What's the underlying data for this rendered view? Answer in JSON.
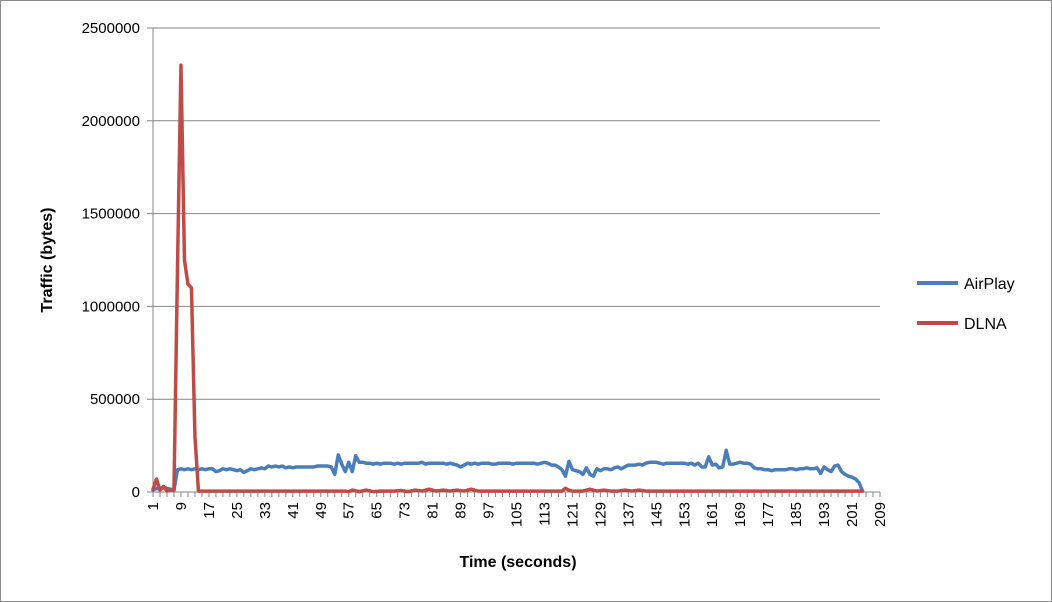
{
  "chart_data": {
    "type": "line",
    "title": "",
    "xlabel": "Time (seconds)",
    "ylabel": "Traffic (bytes)",
    "ylim": [
      0,
      2500000
    ],
    "xlim": [
      1,
      209
    ],
    "y_ticks": [
      "0",
      "500000",
      "1000000",
      "1500000",
      "2000000",
      "2500000"
    ],
    "x_ticks": [
      "1",
      "9",
      "17",
      "25",
      "33",
      "41",
      "49",
      "57",
      "65",
      "73",
      "81",
      "89",
      "97",
      "105",
      "113",
      "121",
      "129",
      "137",
      "145",
      "153",
      "161",
      "169",
      "177",
      "185",
      "193",
      "201",
      "209"
    ],
    "grid": "horizontal",
    "legend_position": "right",
    "series": [
      {
        "name": "AirPlay",
        "color": "#4a7ebb",
        "points": [
          [
            1,
            10000
          ],
          [
            2,
            20000
          ],
          [
            3,
            15000
          ],
          [
            4,
            25000
          ],
          [
            5,
            20000
          ],
          [
            6,
            15000
          ],
          [
            7,
            10000
          ],
          [
            8,
            120000
          ],
          [
            9,
            125000
          ],
          [
            10,
            120000
          ],
          [
            11,
            125000
          ],
          [
            12,
            120000
          ],
          [
            13,
            125000
          ],
          [
            14,
            120000
          ],
          [
            15,
            125000
          ],
          [
            16,
            120000
          ],
          [
            17,
            125000
          ],
          [
            18,
            125000
          ],
          [
            19,
            110000
          ],
          [
            20,
            115000
          ],
          [
            21,
            125000
          ],
          [
            22,
            120000
          ],
          [
            23,
            125000
          ],
          [
            24,
            120000
          ],
          [
            25,
            115000
          ],
          [
            26,
            120000
          ],
          [
            27,
            105000
          ],
          [
            28,
            115000
          ],
          [
            29,
            125000
          ],
          [
            30,
            120000
          ],
          [
            31,
            125000
          ],
          [
            32,
            130000
          ],
          [
            33,
            125000
          ],
          [
            34,
            140000
          ],
          [
            35,
            135000
          ],
          [
            36,
            140000
          ],
          [
            37,
            135000
          ],
          [
            38,
            140000
          ],
          [
            39,
            130000
          ],
          [
            40,
            135000
          ],
          [
            41,
            130000
          ],
          [
            42,
            135000
          ],
          [
            43,
            135000
          ],
          [
            44,
            135000
          ],
          [
            45,
            135000
          ],
          [
            46,
            135000
          ],
          [
            47,
            135000
          ],
          [
            48,
            140000
          ],
          [
            49,
            140000
          ],
          [
            50,
            140000
          ],
          [
            51,
            140000
          ],
          [
            52,
            135000
          ],
          [
            53,
            95000
          ],
          [
            54,
            200000
          ],
          [
            55,
            150000
          ],
          [
            56,
            110000
          ],
          [
            57,
            160000
          ],
          [
            58,
            110000
          ],
          [
            59,
            195000
          ],
          [
            60,
            160000
          ],
          [
            61,
            160000
          ],
          [
            62,
            155000
          ],
          [
            63,
            155000
          ],
          [
            64,
            150000
          ],
          [
            65,
            155000
          ],
          [
            66,
            150000
          ],
          [
            67,
            155000
          ],
          [
            68,
            155000
          ],
          [
            69,
            155000
          ],
          [
            70,
            150000
          ],
          [
            71,
            155000
          ],
          [
            72,
            150000
          ],
          [
            73,
            155000
          ],
          [
            74,
            155000
          ],
          [
            75,
            155000
          ],
          [
            76,
            155000
          ],
          [
            77,
            155000
          ],
          [
            78,
            160000
          ],
          [
            79,
            150000
          ],
          [
            80,
            155000
          ],
          [
            81,
            155000
          ],
          [
            82,
            155000
          ],
          [
            83,
            155000
          ],
          [
            84,
            155000
          ],
          [
            85,
            150000
          ],
          [
            86,
            155000
          ],
          [
            87,
            150000
          ],
          [
            88,
            145000
          ],
          [
            89,
            135000
          ],
          [
            90,
            145000
          ],
          [
            91,
            155000
          ],
          [
            92,
            150000
          ],
          [
            93,
            155000
          ],
          [
            94,
            150000
          ],
          [
            95,
            155000
          ],
          [
            96,
            155000
          ],
          [
            97,
            155000
          ],
          [
            98,
            150000
          ],
          [
            99,
            150000
          ],
          [
            100,
            155000
          ],
          [
            101,
            155000
          ],
          [
            102,
            155000
          ],
          [
            103,
            155000
          ],
          [
            104,
            150000
          ],
          [
            105,
            155000
          ],
          [
            106,
            155000
          ],
          [
            107,
            155000
          ],
          [
            108,
            155000
          ],
          [
            109,
            155000
          ],
          [
            110,
            155000
          ],
          [
            111,
            150000
          ],
          [
            112,
            155000
          ],
          [
            113,
            160000
          ],
          [
            114,
            155000
          ],
          [
            115,
            145000
          ],
          [
            116,
            145000
          ],
          [
            117,
            135000
          ],
          [
            118,
            120000
          ],
          [
            119,
            85000
          ],
          [
            120,
            165000
          ],
          [
            121,
            120000
          ],
          [
            122,
            115000
          ],
          [
            123,
            110000
          ],
          [
            124,
            95000
          ],
          [
            125,
            130000
          ],
          [
            126,
            95000
          ],
          [
            127,
            85000
          ],
          [
            128,
            125000
          ],
          [
            129,
            115000
          ],
          [
            130,
            125000
          ],
          [
            131,
            125000
          ],
          [
            132,
            120000
          ],
          [
            133,
            130000
          ],
          [
            134,
            135000
          ],
          [
            135,
            125000
          ],
          [
            136,
            135000
          ],
          [
            137,
            145000
          ],
          [
            138,
            145000
          ],
          [
            139,
            145000
          ],
          [
            140,
            150000
          ],
          [
            141,
            145000
          ],
          [
            142,
            155000
          ],
          [
            143,
            160000
          ],
          [
            144,
            160000
          ],
          [
            145,
            160000
          ],
          [
            146,
            155000
          ],
          [
            147,
            150000
          ],
          [
            148,
            155000
          ],
          [
            149,
            155000
          ],
          [
            150,
            155000
          ],
          [
            151,
            155000
          ],
          [
            152,
            155000
          ],
          [
            153,
            155000
          ],
          [
            154,
            150000
          ],
          [
            155,
            155000
          ],
          [
            156,
            145000
          ],
          [
            157,
            155000
          ],
          [
            158,
            135000
          ],
          [
            159,
            135000
          ],
          [
            160,
            190000
          ],
          [
            161,
            145000
          ],
          [
            162,
            150000
          ],
          [
            163,
            130000
          ],
          [
            164,
            135000
          ],
          [
            165,
            225000
          ],
          [
            166,
            150000
          ],
          [
            167,
            150000
          ],
          [
            168,
            155000
          ],
          [
            169,
            160000
          ],
          [
            170,
            155000
          ],
          [
            171,
            155000
          ],
          [
            172,
            150000
          ],
          [
            173,
            130000
          ],
          [
            174,
            125000
          ],
          [
            175,
            125000
          ],
          [
            176,
            120000
          ],
          [
            177,
            120000
          ],
          [
            178,
            115000
          ],
          [
            179,
            120000
          ],
          [
            180,
            120000
          ],
          [
            181,
            120000
          ],
          [
            182,
            120000
          ],
          [
            183,
            125000
          ],
          [
            184,
            125000
          ],
          [
            185,
            120000
          ],
          [
            186,
            125000
          ],
          [
            187,
            125000
          ],
          [
            188,
            130000
          ],
          [
            189,
            125000
          ],
          [
            190,
            125000
          ],
          [
            191,
            130000
          ],
          [
            192,
            100000
          ],
          [
            193,
            135000
          ],
          [
            194,
            120000
          ],
          [
            195,
            110000
          ],
          [
            196,
            140000
          ],
          [
            197,
            145000
          ],
          [
            198,
            110000
          ],
          [
            199,
            95000
          ],
          [
            200,
            85000
          ],
          [
            201,
            80000
          ],
          [
            202,
            70000
          ],
          [
            203,
            50000
          ],
          [
            204,
            5000
          ]
        ]
      },
      {
        "name": "DLNA",
        "color": "#be4b48",
        "points": [
          [
            1,
            15000
          ],
          [
            2,
            70000
          ],
          [
            3,
            10000
          ],
          [
            4,
            30000
          ],
          [
            5,
            5000
          ],
          [
            6,
            10000
          ],
          [
            7,
            10000
          ],
          [
            8,
            1200000
          ],
          [
            9,
            2300000
          ],
          [
            10,
            1250000
          ],
          [
            11,
            1120000
          ],
          [
            12,
            1100000
          ],
          [
            13,
            300000
          ],
          [
            14,
            5000
          ],
          [
            15,
            5000
          ],
          [
            16,
            5000
          ],
          [
            17,
            5000
          ],
          [
            18,
            5000
          ],
          [
            19,
            5000
          ],
          [
            20,
            5000
          ],
          [
            30,
            5000
          ],
          [
            40,
            5000
          ],
          [
            50,
            5000
          ],
          [
            56,
            5000
          ],
          [
            57,
            2000
          ],
          [
            58,
            10000
          ],
          [
            60,
            2000
          ],
          [
            62,
            10000
          ],
          [
            64,
            2000
          ],
          [
            66,
            5000
          ],
          [
            70,
            5000
          ],
          [
            72,
            8000
          ],
          [
            74,
            2000
          ],
          [
            76,
            10000
          ],
          [
            78,
            5000
          ],
          [
            80,
            15000
          ],
          [
            82,
            5000
          ],
          [
            84,
            10000
          ],
          [
            86,
            5000
          ],
          [
            88,
            10000
          ],
          [
            90,
            5000
          ],
          [
            92,
            15000
          ],
          [
            94,
            5000
          ],
          [
            96,
            5000
          ],
          [
            100,
            5000
          ],
          [
            110,
            5000
          ],
          [
            118,
            5000
          ],
          [
            119,
            20000
          ],
          [
            120,
            10000
          ],
          [
            121,
            5000
          ],
          [
            124,
            5000
          ],
          [
            126,
            15000
          ],
          [
            128,
            5000
          ],
          [
            130,
            10000
          ],
          [
            132,
            5000
          ],
          [
            134,
            5000
          ],
          [
            136,
            10000
          ],
          [
            138,
            5000
          ],
          [
            140,
            10000
          ],
          [
            142,
            5000
          ],
          [
            150,
            5000
          ],
          [
            160,
            5000
          ],
          [
            170,
            5000
          ],
          [
            180,
            5000
          ],
          [
            190,
            5000
          ],
          [
            200,
            5000
          ],
          [
            204,
            5000
          ]
        ]
      }
    ]
  }
}
